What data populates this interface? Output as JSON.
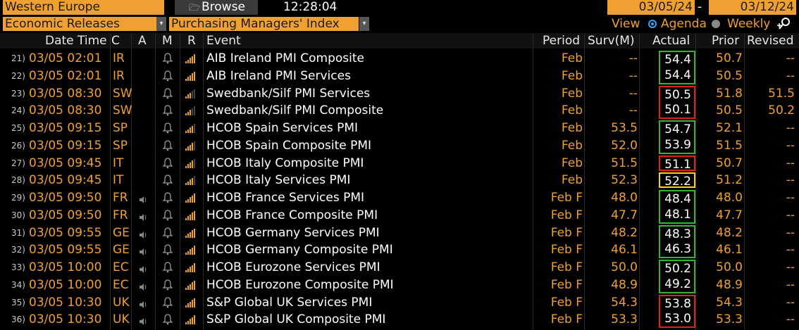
{
  "top": {
    "region": "Western Europe",
    "browse": "Browse",
    "time": "12:28:04",
    "date_from": "03/05/24",
    "date_sep": "-",
    "date_to": "03/12/24"
  },
  "filters": {
    "category": "Economic Releases",
    "indicator": "Purchasing Managers' Index",
    "view_label": "View",
    "agenda_label": "Agenda",
    "weekly_label": "Weekly"
  },
  "headers": {
    "datetime": "Date Time",
    "c": "C",
    "a": "A",
    "m": "M",
    "r": "R",
    "event": "Event",
    "period": "Period",
    "surv": "Surv(M)",
    "actual": "Actual",
    "prior": "Prior",
    "revised": "Revised"
  },
  "colors": {
    "green": "#2eb82e",
    "red": "#e02020",
    "yellow": "#ffd700",
    "orange": "#f0a030"
  },
  "rows": [
    {
      "num": "21)",
      "datetime": "03/05 02:01",
      "country": "IR",
      "alert": false,
      "bars": 5,
      "event": "AIB Ireland PMI Composite",
      "period": "Feb",
      "surv": "--",
      "actual": "54.4",
      "prior": "50.7",
      "revised": "--",
      "box": "green",
      "group": "start"
    },
    {
      "num": "22)",
      "datetime": "03/05 02:01",
      "country": "IR",
      "alert": false,
      "bars": 5,
      "event": "AIB Ireland PMI Services",
      "period": "Feb",
      "surv": "--",
      "actual": "54.4",
      "prior": "50.5",
      "revised": "--",
      "box": "green",
      "group": "end"
    },
    {
      "num": "23)",
      "datetime": "03/05 08:30",
      "country": "SW",
      "alert": false,
      "bars": 3,
      "event": "Swedbank/Silf PMI Services",
      "period": "Feb",
      "surv": "--",
      "actual": "50.5",
      "prior": "51.8",
      "revised": "51.5",
      "box": "red",
      "group": "start"
    },
    {
      "num": "24)",
      "datetime": "03/05 08:30",
      "country": "SW",
      "alert": false,
      "bars": 3,
      "event": "Swedbank/Silf PMI Composite",
      "period": "Feb",
      "surv": "--",
      "actual": "50.1",
      "prior": "50.5",
      "revised": "50.2",
      "box": "red",
      "group": "end"
    },
    {
      "num": "25)",
      "datetime": "03/05 09:15",
      "country": "SP",
      "alert": false,
      "bars": 4,
      "event": "HCOB Spain Services PMI",
      "period": "Feb",
      "surv": "53.5",
      "actual": "54.7",
      "prior": "52.1",
      "revised": "--",
      "box": "green",
      "group": "start"
    },
    {
      "num": "26)",
      "datetime": "03/05 09:15",
      "country": "SP",
      "alert": false,
      "bars": 4,
      "event": "HCOB Spain Composite PMI",
      "period": "Feb",
      "surv": "52.0",
      "actual": "53.9",
      "prior": "51.5",
      "revised": "--",
      "box": "green",
      "group": "end"
    },
    {
      "num": "27)",
      "datetime": "03/05 09:45",
      "country": "IT",
      "alert": false,
      "bars": 4,
      "event": "HCOB Italy Composite PMI",
      "period": "Feb",
      "surv": "51.5",
      "actual": "51.1",
      "prior": "50.7",
      "revised": "--",
      "box": "red",
      "group": "single"
    },
    {
      "num": "28)",
      "datetime": "03/05 09:45",
      "country": "IT",
      "alert": false,
      "bars": 4,
      "event": "HCOB Italy Services PMI",
      "period": "Feb",
      "surv": "52.3",
      "actual": "52.2",
      "prior": "51.2",
      "revised": "--",
      "box": "yellow",
      "group": "single"
    },
    {
      "num": "29)",
      "datetime": "03/05 09:50",
      "country": "FR",
      "alert": true,
      "bars": 5,
      "event": "HCOB France Services PMI",
      "period": "Feb F",
      "surv": "48.0",
      "actual": "48.4",
      "prior": "48.0",
      "revised": "--",
      "box": "green",
      "group": "start"
    },
    {
      "num": "30)",
      "datetime": "03/05 09:50",
      "country": "FR",
      "alert": true,
      "bars": 5,
      "event": "HCOB France Composite PMI",
      "period": "Feb F",
      "surv": "47.7",
      "actual": "48.1",
      "prior": "47.7",
      "revised": "--",
      "box": "green",
      "group": "end"
    },
    {
      "num": "31)",
      "datetime": "03/05 09:55",
      "country": "GE",
      "alert": true,
      "bars": 5,
      "event": "HCOB Germany Services PMI",
      "period": "Feb F",
      "surv": "48.2",
      "actual": "48.3",
      "prior": "48.2",
      "revised": "--",
      "box": "green",
      "group": "start"
    },
    {
      "num": "32)",
      "datetime": "03/05 09:55",
      "country": "GE",
      "alert": true,
      "bars": 5,
      "event": "HCOB Germany Composite PMI",
      "period": "Feb F",
      "surv": "46.1",
      "actual": "46.3",
      "prior": "46.1",
      "revised": "--",
      "box": "green",
      "group": "end"
    },
    {
      "num": "33)",
      "datetime": "03/05 10:00",
      "country": "EC",
      "alert": true,
      "bars": 5,
      "event": "HCOB Eurozone Services PMI",
      "period": "Feb F",
      "surv": "50.0",
      "actual": "50.2",
      "prior": "50.0",
      "revised": "--",
      "box": "green",
      "group": "start"
    },
    {
      "num": "34)",
      "datetime": "03/05 10:00",
      "country": "EC",
      "alert": true,
      "bars": 5,
      "event": "HCOB Eurozone Composite PMI",
      "period": "Feb F",
      "surv": "48.9",
      "actual": "49.2",
      "prior": "48.9",
      "revised": "--",
      "box": "green",
      "group": "end"
    },
    {
      "num": "35)",
      "datetime": "03/05 10:30",
      "country": "UK",
      "alert": true,
      "bars": 5,
      "event": "S&P Global UK Services PMI",
      "period": "Feb F",
      "surv": "54.3",
      "actual": "53.8",
      "prior": "54.3",
      "revised": "--",
      "box": "red",
      "group": "start"
    },
    {
      "num": "36)",
      "datetime": "03/05 10:30",
      "country": "UK",
      "alert": true,
      "bars": 5,
      "event": "S&P Global UK Composite PMI",
      "period": "Feb F",
      "surv": "53.3",
      "actual": "53.0",
      "prior": "53.3",
      "revised": "--",
      "box": "red",
      "group": "end"
    }
  ]
}
